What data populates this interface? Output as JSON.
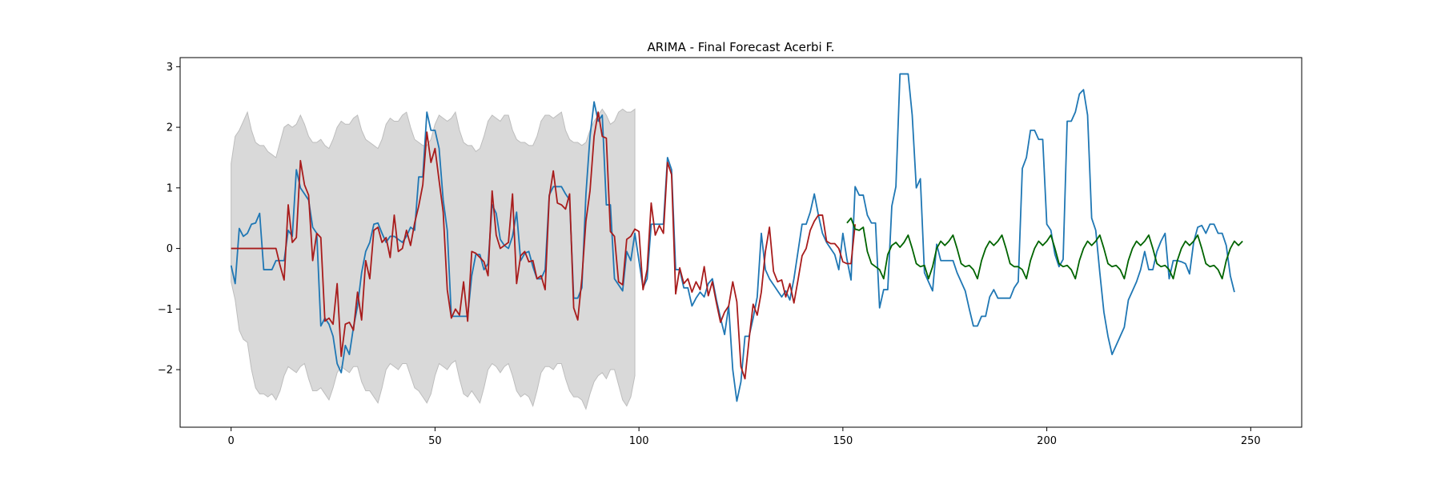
{
  "chart_data": {
    "type": "line",
    "title": "ARIMA - Final Forecast Acerbi F.",
    "xlabel": "",
    "ylabel": "",
    "xlim": [
      -12.5,
      262.5
    ],
    "ylim": [
      -2.95,
      3.15
    ],
    "x_ticks": [
      0,
      50,
      100,
      150,
      200,
      250
    ],
    "y_ticks": [
      -2,
      -1,
      0,
      1,
      2,
      3
    ],
    "grid": false,
    "legend": "none",
    "colors": {
      "actual": "#1f77b4",
      "fitted": "#a81c1c",
      "forecast": "#006400",
      "band": "#d9d9d9",
      "band_edge": "#bdbdbd"
    },
    "confidence_band": {
      "x_start": 0,
      "x_end": 99,
      "lower": [
        -0.55,
        -0.85,
        -1.35,
        -1.5,
        -1.55,
        -2.0,
        -2.3,
        -2.4,
        -2.4,
        -2.45,
        -2.4,
        -2.5,
        -2.35,
        -2.1,
        -1.95,
        -2.0,
        -2.05,
        -1.95,
        -1.9,
        -2.15,
        -2.35,
        -2.35,
        -2.3,
        -2.4,
        -2.5,
        -2.3,
        -2.05,
        -1.95,
        -2.0,
        -2.05,
        -1.95,
        -1.95,
        -2.2,
        -2.35,
        -2.35,
        -2.45,
        -2.55,
        -2.3,
        -2.0,
        -1.9,
        -1.95,
        -2.0,
        -1.9,
        -1.9,
        -2.1,
        -2.3,
        -2.35,
        -2.45,
        -2.55,
        -2.4,
        -2.1,
        -1.9,
        -1.95,
        -2.0,
        -1.9,
        -1.85,
        -2.15,
        -2.4,
        -2.45,
        -2.35,
        -2.45,
        -2.55,
        -2.3,
        -2.0,
        -1.9,
        -1.95,
        -2.05,
        -1.95,
        -1.9,
        -2.1,
        -2.35,
        -2.45,
        -2.4,
        -2.45,
        -2.6,
        -2.35,
        -2.05,
        -1.95,
        -1.95,
        -2.0,
        -1.9,
        -1.9,
        -2.15,
        -2.35,
        -2.45,
        -2.45,
        -2.5,
        -2.65,
        -2.4,
        -2.2,
        -2.1,
        -2.05,
        -2.15,
        -2.0,
        -2.0,
        -2.25,
        -2.5,
        -2.6,
        -2.45,
        -2.1
      ],
      "upper": [
        1.4,
        1.85,
        1.95,
        2.1,
        2.25,
        1.95,
        1.75,
        1.7,
        1.7,
        1.6,
        1.55,
        1.5,
        1.75,
        2.0,
        2.05,
        2.0,
        2.05,
        2.2,
        2.05,
        1.85,
        1.75,
        1.75,
        1.8,
        1.7,
        1.65,
        1.8,
        2.0,
        2.1,
        2.05,
        2.05,
        2.15,
        2.2,
        1.95,
        1.8,
        1.75,
        1.7,
        1.65,
        1.8,
        2.05,
        2.15,
        2.1,
        2.1,
        2.2,
        2.25,
        2.0,
        1.8,
        1.75,
        1.7,
        1.7,
        1.8,
        2.05,
        2.2,
        2.15,
        2.1,
        2.15,
        2.25,
        1.95,
        1.75,
        1.7,
        1.7,
        1.6,
        1.65,
        1.85,
        2.1,
        2.2,
        2.15,
        2.1,
        2.2,
        2.2,
        1.95,
        1.8,
        1.75,
        1.75,
        1.7,
        1.7,
        1.85,
        2.1,
        2.2,
        2.2,
        2.15,
        2.2,
        2.25,
        1.95,
        1.8,
        1.75,
        1.75,
        1.7,
        1.75,
        1.95,
        2.1,
        2.2,
        2.3,
        2.2,
        2.05,
        2.1,
        2.25,
        2.3,
        2.25,
        2.25,
        2.3
      ]
    },
    "series": [
      {
        "id": "actual",
        "x_start": 0,
        "values": [
          -0.28,
          -0.58,
          0.33,
          0.2,
          0.25,
          0.4,
          0.42,
          0.58,
          -0.35,
          -0.35,
          -0.35,
          -0.2,
          -0.2,
          -0.2,
          0.3,
          0.2,
          1.3,
          1.0,
          0.9,
          0.8,
          0.35,
          0.25,
          -1.28,
          -1.15,
          -1.25,
          -1.45,
          -1.9,
          -2.05,
          -1.6,
          -1.75,
          -1.3,
          -0.95,
          -0.4,
          -0.05,
          0.1,
          0.4,
          0.42,
          0.25,
          0.1,
          0.2,
          0.2,
          0.15,
          0.1,
          0.2,
          0.35,
          0.3,
          1.18,
          1.18,
          2.25,
          1.95,
          1.95,
          1.65,
          0.8,
          0.3,
          -1.12,
          -1.12,
          -1.12,
          -1.12,
          -1.12,
          -0.45,
          -0.1,
          -0.1,
          -0.35,
          -0.25,
          0.72,
          0.58,
          0.15,
          0.05,
          0.0,
          0.2,
          0.6,
          -0.2,
          -0.08,
          -0.05,
          -0.3,
          -0.5,
          -0.5,
          -0.35,
          0.88,
          1.02,
          1.02,
          1.02,
          0.9,
          0.8,
          -0.82,
          -0.82,
          -0.65,
          0.9,
          1.85,
          2.42,
          2.1,
          2.2,
          0.72,
          0.72,
          -0.5,
          -0.6,
          -0.7,
          -0.05,
          -0.2,
          0.25,
          -0.2,
          -0.65,
          -0.5,
          0.4,
          0.4,
          0.4,
          0.4,
          1.5,
          1.3,
          -0.35,
          -0.35,
          -0.65,
          -0.65,
          -0.95,
          -0.82,
          -0.72,
          -0.8,
          -0.58,
          -0.5,
          -0.85,
          -1.15,
          -1.42,
          -0.95,
          -2.0,
          -2.52,
          -2.2,
          -1.45,
          -1.45,
          -1.15,
          -0.8,
          0.25,
          -0.35,
          -0.5,
          -0.6,
          -0.7,
          -0.8,
          -0.7,
          -0.85,
          -0.5,
          -0.05,
          0.4,
          0.4,
          0.6,
          0.9,
          0.55,
          0.25,
          0.1,
          0.0,
          -0.1,
          -0.35,
          0.25,
          -0.18,
          -0.52,
          1.02,
          0.88,
          0.88,
          0.55,
          0.42,
          0.42,
          -0.98,
          -0.68,
          -0.68,
          0.7,
          1.02,
          2.88,
          2.88,
          2.88,
          2.2,
          1.0,
          1.15,
          -0.4,
          -0.55,
          -0.7,
          0.07,
          -0.2,
          -0.2,
          -0.2,
          -0.2,
          -0.4,
          -0.55,
          -0.7,
          -1.0,
          -1.28,
          -1.28,
          -1.12,
          -1.12,
          -0.8,
          -0.68,
          -0.82,
          -0.82,
          -0.82,
          -0.82,
          -0.65,
          -0.55,
          1.32,
          1.5,
          1.95,
          1.95,
          1.8,
          1.8,
          0.4,
          0.3,
          -0.1,
          -0.3,
          -0.18,
          2.1,
          2.1,
          2.25,
          2.55,
          2.62,
          2.2,
          0.5,
          0.3,
          -0.4,
          -1.05,
          -1.45,
          -1.75,
          -1.6,
          -1.45,
          -1.3,
          -0.85,
          -0.7,
          -0.55,
          -0.35,
          -0.05,
          -0.35,
          -0.35,
          -0.05,
          0.12,
          0.25,
          -0.5,
          -0.2,
          -0.2,
          -0.22,
          -0.25,
          -0.42,
          0.1,
          0.35,
          0.38,
          0.25,
          0.4,
          0.4,
          0.25,
          0.25,
          0.05,
          -0.45,
          -0.72
        ]
      },
      {
        "id": "fitted",
        "x_start": 0,
        "values": [
          0.0,
          0.0,
          0.0,
          0.0,
          0.0,
          0.0,
          0.0,
          0.0,
          0.0,
          0.0,
          0.0,
          0.0,
          -0.28,
          -0.52,
          0.72,
          0.1,
          0.18,
          1.45,
          1.05,
          0.88,
          -0.2,
          0.25,
          0.18,
          -1.2,
          -1.15,
          -1.25,
          -0.58,
          -1.78,
          -1.25,
          -1.22,
          -1.35,
          -0.72,
          -1.18,
          -0.2,
          -0.5,
          0.3,
          0.35,
          0.1,
          0.18,
          -0.15,
          0.55,
          -0.05,
          0.0,
          0.3,
          0.05,
          0.42,
          0.7,
          1.05,
          1.92,
          1.42,
          1.65,
          1.12,
          0.6,
          -0.68,
          -1.15,
          -1.0,
          -1.1,
          -0.55,
          -1.2,
          -0.05,
          -0.08,
          -0.15,
          -0.22,
          -0.45,
          0.95,
          0.22,
          0.0,
          0.05,
          0.1,
          0.9,
          -0.58,
          -0.12,
          -0.05,
          -0.22,
          -0.2,
          -0.5,
          -0.45,
          -0.68,
          0.85,
          1.28,
          0.75,
          0.72,
          0.65,
          0.9,
          -0.98,
          -1.18,
          -0.5,
          0.45,
          0.95,
          1.85,
          2.25,
          1.85,
          1.82,
          0.28,
          0.2,
          -0.55,
          -0.6,
          0.15,
          0.2,
          0.32,
          0.28,
          -0.68,
          -0.35,
          0.75,
          0.22,
          0.38,
          0.25,
          1.42,
          1.22,
          -0.75,
          -0.32,
          -0.58,
          -0.5,
          -0.72,
          -0.55,
          -0.68,
          -0.3,
          -0.78,
          -0.55,
          -0.9,
          -1.22,
          -1.05,
          -0.95,
          -0.55,
          -0.88,
          -1.95,
          -2.15,
          -1.5,
          -0.92,
          -1.1,
          -0.72,
          -0.05,
          0.35,
          -0.38,
          -0.55,
          -0.52,
          -0.8,
          -0.58,
          -0.9,
          -0.52,
          -0.12,
          0.0,
          0.3,
          0.45,
          0.55,
          0.55,
          0.12,
          0.08,
          0.08,
          0.0,
          -0.22,
          -0.25,
          -0.25,
          0.4
        ]
      },
      {
        "id": "forecast",
        "x_start": 151,
        "values": [
          0.42,
          0.5,
          0.32,
          0.3,
          0.35,
          -0.05,
          -0.25,
          -0.3,
          -0.35,
          -0.5,
          -0.1,
          0.05,
          0.1,
          0.02,
          0.1,
          0.22,
          0.0,
          -0.25,
          -0.3,
          -0.28,
          -0.5,
          -0.3,
          0.0,
          0.12,
          0.05,
          0.12,
          0.22,
          0.0,
          -0.25,
          -0.3,
          -0.28,
          -0.35,
          -0.5,
          -0.2,
          0.0,
          0.12,
          0.05,
          0.12,
          0.22,
          0.0,
          -0.25,
          -0.3,
          -0.3,
          -0.35,
          -0.5,
          -0.2,
          0.0,
          0.12,
          0.05,
          0.12,
          0.22,
          0.0,
          -0.25,
          -0.3,
          -0.28,
          -0.35,
          -0.5,
          -0.2,
          0.0,
          0.12,
          0.05,
          0.12,
          0.22,
          0.0,
          -0.25,
          -0.3,
          -0.28,
          -0.35,
          -0.5,
          -0.2,
          0.0,
          0.12,
          0.05,
          0.12,
          0.22,
          0.0,
          -0.25,
          -0.3,
          -0.28,
          -0.35,
          -0.5,
          -0.2,
          0.0,
          0.12,
          0.05,
          0.12,
          0.22,
          0.0,
          -0.25,
          -0.3,
          -0.28,
          -0.35,
          -0.5,
          -0.2,
          0.0,
          0.12,
          0.05,
          0.12
        ]
      }
    ]
  }
}
